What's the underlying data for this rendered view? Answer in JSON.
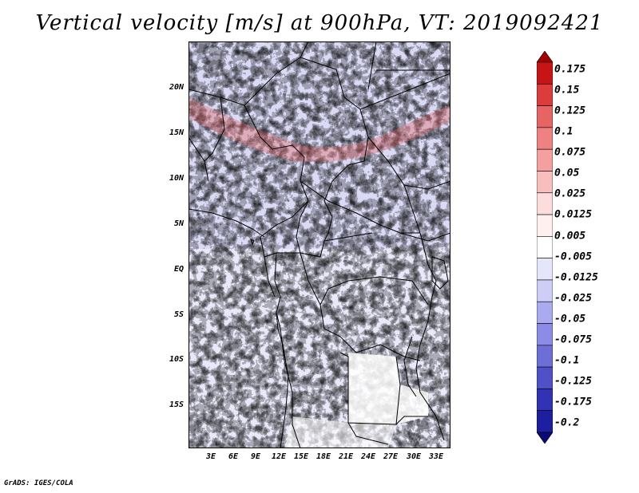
{
  "title": "Vertical velocity [m/s] at 900hPa, VT: 2019092421",
  "footer": "GrADS: IGES/COLA",
  "map": {
    "lat_labels": [
      "20N",
      "15N",
      "10N",
      "5N",
      "EQ",
      "5S",
      "10S",
      "15S"
    ],
    "lon_labels": [
      "3E",
      "6E",
      "9E",
      "12E",
      "15E",
      "18E",
      "21E",
      "24E",
      "27E",
      "30E",
      "33E"
    ],
    "lon_range": [
      0,
      35
    ],
    "lat_range": [
      -20,
      25
    ]
  },
  "colorbar": {
    "levels": [
      "0.175",
      "0.15",
      "0.125",
      "0.1",
      "0.075",
      "0.05",
      "0.025",
      "0.0125",
      "0.005",
      "-0.005",
      "-0.0125",
      "-0.025",
      "-0.05",
      "-0.075",
      "-0.1",
      "-0.125",
      "-0.175",
      "-0.2"
    ],
    "colors": [
      "#a40000",
      "#c81414",
      "#dc3c3c",
      "#e66464",
      "#ee8282",
      "#f4a0a0",
      "#f8bebe",
      "#fcdcdc",
      "#fff0f0",
      "#ffffff",
      "#e6e6fa",
      "#cdcdf5",
      "#aaaaf0",
      "#8c8ce6",
      "#6e6ed7",
      "#5050c8",
      "#3232b4",
      "#1e1ea0",
      "#0a0a78"
    ]
  }
}
